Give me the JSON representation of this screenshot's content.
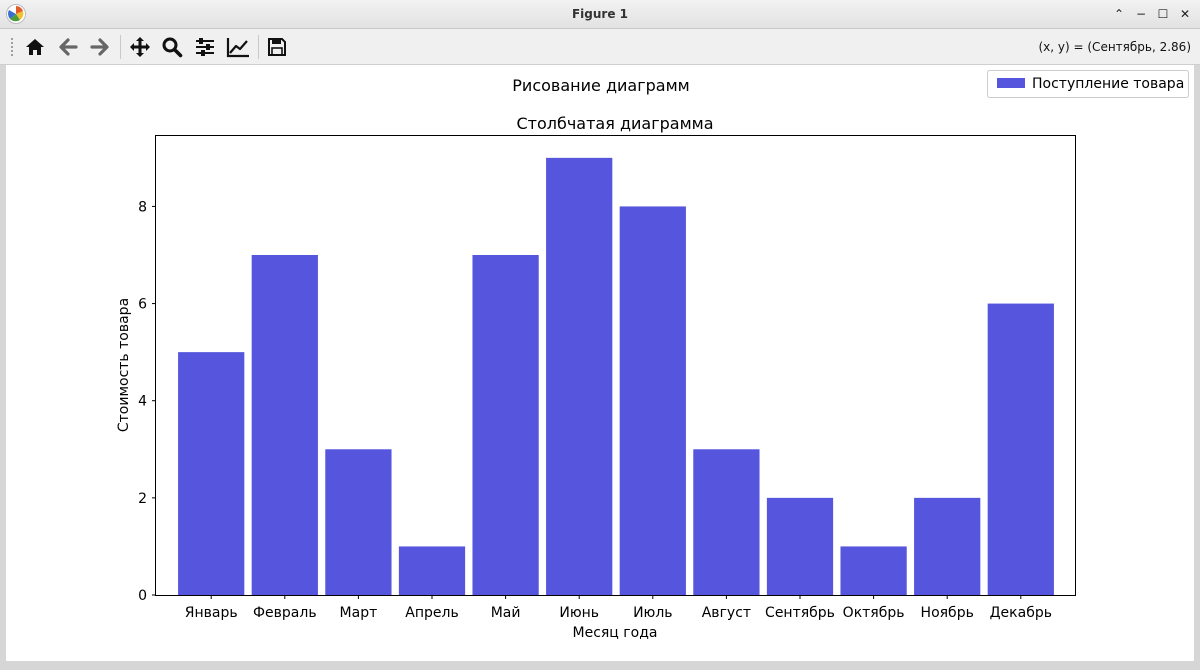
{
  "window": {
    "title": "Figure 1",
    "controls": [
      "⌃",
      "−",
      "☐",
      "✕"
    ]
  },
  "toolbar": {
    "buttons": [
      "home-icon",
      "back-arrow-icon",
      "forward-arrow-icon",
      "pan-icon",
      "zoom-icon",
      "configure-subplots-icon",
      "edit-axis-icon",
      "save-icon"
    ],
    "coords": "(x, y) = (Сентябрь, 2.86)"
  },
  "figure": {
    "suptitle": "Рисование диаграмм"
  },
  "chart_data": {
    "type": "bar",
    "title": "Столбчатая диаграмма",
    "xlabel": "Месяц года",
    "ylabel": "Стоимость товара",
    "categories": [
      "Январь",
      "Февраль",
      "Март",
      "Апрель",
      "Май",
      "Июнь",
      "Июль",
      "Август",
      "Сентябрь",
      "Октябрь",
      "Ноябрь",
      "Декабрь"
    ],
    "series": [
      {
        "name": "Поступление товара",
        "values": [
          5,
          7,
          3,
          1,
          7,
          9,
          8,
          3,
          2,
          1,
          2,
          6
        ],
        "color": "#5555de"
      }
    ],
    "ylim": [
      0,
      9.45
    ],
    "yticks": [
      0,
      2,
      4,
      6,
      8
    ],
    "legend_position": "top-right",
    "grid": false
  }
}
